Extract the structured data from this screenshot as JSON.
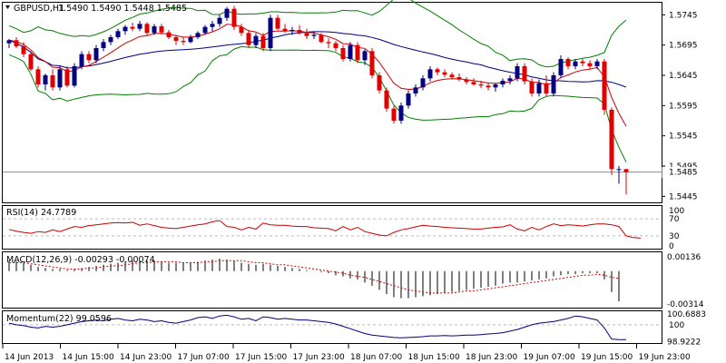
{
  "chart_data": {
    "type": "candlestick",
    "title": "GBPUSD,H1",
    "ohlc_header": "1.5490 1.5490 1.5448 1.5485",
    "last_price": 1.5485,
    "price_axis": {
      "range": [
        1.5435,
        1.5765
      ],
      "ticks": [
        "1.5745",
        "1.5695",
        "1.5645",
        "1.5595",
        "1.5545",
        "1.5495",
        "1.5445"
      ],
      "current_label": "1.5485"
    },
    "time_labels": [
      "14 Jun 2013",
      "14 Jun 15:00",
      "14 Jun 23:00",
      "17 Jun 07:00",
      "17 Jun 15:00",
      "17 Jun 23:00",
      "18 Jun 07:00",
      "18 Jun 15:00",
      "18 Jun 23:00",
      "19 Jun 07:00",
      "19 Jun 15:00",
      "19 Jun 23:00"
    ],
    "candles": [
      [
        1.5698,
        1.5705,
        1.569,
        1.5703
      ],
      [
        1.5703,
        1.5708,
        1.569,
        1.5693
      ],
      [
        1.5693,
        1.57,
        1.5675,
        1.568
      ],
      [
        1.568,
        1.5685,
        1.5652,
        1.5655
      ],
      [
        1.5655,
        1.566,
        1.5625,
        1.563
      ],
      [
        1.563,
        1.5648,
        1.562,
        1.5645
      ],
      [
        1.5645,
        1.5655,
        1.562,
        1.5625
      ],
      [
        1.5625,
        1.566,
        1.562,
        1.5655
      ],
      [
        1.5655,
        1.566,
        1.5625,
        1.5628
      ],
      [
        1.5628,
        1.5665,
        1.5625,
        1.566
      ],
      [
        1.566,
        1.5685,
        1.5655,
        1.568
      ],
      [
        1.568,
        1.5685,
        1.5665,
        1.567
      ],
      [
        1.567,
        1.5695,
        1.5665,
        1.569
      ],
      [
        1.569,
        1.5705,
        1.5685,
        1.57
      ],
      [
        1.57,
        1.5712,
        1.5695,
        1.5708
      ],
      [
        1.5708,
        1.5722,
        1.5705,
        1.5718
      ],
      [
        1.5718,
        1.5728,
        1.5712,
        1.5725
      ],
      [
        1.5725,
        1.5732,
        1.5718,
        1.5722
      ],
      [
        1.5722,
        1.5735,
        1.5718,
        1.573
      ],
      [
        1.573,
        1.5733,
        1.571,
        1.5715
      ],
      [
        1.5715,
        1.573,
        1.5712,
        1.5726
      ],
      [
        1.5726,
        1.573,
        1.5712,
        1.5716
      ],
      [
        1.5716,
        1.572,
        1.5705,
        1.5708
      ],
      [
        1.5708,
        1.5712,
        1.5695,
        1.5702
      ],
      [
        1.5702,
        1.5708,
        1.5695,
        1.57
      ],
      [
        1.57,
        1.5712,
        1.5698,
        1.5708
      ],
      [
        1.5708,
        1.5718,
        1.5705,
        1.5715
      ],
      [
        1.5715,
        1.5728,
        1.5712,
        1.5725
      ],
      [
        1.5725,
        1.5735,
        1.5718,
        1.573
      ],
      [
        1.573,
        1.5745,
        1.5725,
        1.574
      ],
      [
        1.574,
        1.5758,
        1.5735,
        1.5755
      ],
      [
        1.5755,
        1.576,
        1.572,
        1.5725
      ],
      [
        1.5725,
        1.573,
        1.571,
        1.5715
      ],
      [
        1.5715,
        1.572,
        1.569,
        1.5695
      ],
      [
        1.5695,
        1.5715,
        1.569,
        1.571
      ],
      [
        1.571,
        1.5715,
        1.5685,
        1.569
      ],
      [
        1.569,
        1.5745,
        1.5685,
        1.574
      ],
      [
        1.574,
        1.5745,
        1.572,
        1.5722
      ],
      [
        1.5722,
        1.573,
        1.5715,
        1.5718
      ],
      [
        1.5718,
        1.5725,
        1.5712,
        1.572
      ],
      [
        1.572,
        1.5728,
        1.5712,
        1.5715
      ],
      [
        1.5715,
        1.5722,
        1.5705,
        1.571
      ],
      [
        1.571,
        1.5718,
        1.5705,
        1.5712
      ],
      [
        1.5712,
        1.5715,
        1.5698,
        1.57
      ],
      [
        1.57,
        1.5706,
        1.569,
        1.5698
      ],
      [
        1.5698,
        1.5702,
        1.5685,
        1.569
      ],
      [
        1.569,
        1.5695,
        1.5668,
        1.5672
      ],
      [
        1.5672,
        1.57,
        1.5668,
        1.5695
      ],
      [
        1.5695,
        1.57,
        1.5665,
        1.567
      ],
      [
        1.567,
        1.5688,
        1.5662,
        1.5685
      ],
      [
        1.5685,
        1.569,
        1.564,
        1.5645
      ],
      [
        1.5645,
        1.565,
        1.5615,
        1.562
      ],
      [
        1.562,
        1.5625,
        1.5585,
        1.559
      ],
      [
        1.559,
        1.5595,
        1.5565,
        1.557
      ],
      [
        1.557,
        1.56,
        1.5565,
        1.5595
      ],
      [
        1.5595,
        1.562,
        1.559,
        1.5615
      ],
      [
        1.5615,
        1.563,
        1.561,
        1.5625
      ],
      [
        1.5625,
        1.5645,
        1.562,
        1.564
      ],
      [
        1.564,
        1.566,
        1.5635,
        1.5655
      ],
      [
        1.5655,
        1.5658,
        1.5645,
        1.565
      ],
      [
        1.565,
        1.5655,
        1.5642,
        1.5646
      ],
      [
        1.5646,
        1.565,
        1.5638,
        1.5642
      ],
      [
        1.5642,
        1.5648,
        1.5635,
        1.5638
      ],
      [
        1.5638,
        1.5642,
        1.563,
        1.5634
      ],
      [
        1.5634,
        1.564,
        1.5628,
        1.563
      ],
      [
        1.563,
        1.5636,
        1.5624,
        1.5628
      ],
      [
        1.5628,
        1.5632,
        1.562,
        1.5625
      ],
      [
        1.5625,
        1.5632,
        1.5618,
        1.563
      ],
      [
        1.563,
        1.564,
        1.5625,
        1.5636
      ],
      [
        1.5636,
        1.5645,
        1.563,
        1.564
      ],
      [
        1.564,
        1.5665,
        1.5635,
        1.566
      ],
      [
        1.566,
        1.5665,
        1.563,
        1.5635
      ],
      [
        1.5635,
        1.564,
        1.561,
        1.5615
      ],
      [
        1.5615,
        1.5638,
        1.561,
        1.5632
      ],
      [
        1.5632,
        1.5645,
        1.561,
        1.5615
      ],
      [
        1.5615,
        1.565,
        1.561,
        1.5645
      ],
      [
        1.5645,
        1.5678,
        1.564,
        1.5672
      ],
      [
        1.5672,
        1.5675,
        1.5655,
        1.566
      ],
      [
        1.566,
        1.5672,
        1.5655,
        1.5668
      ],
      [
        1.5668,
        1.5672,
        1.566,
        1.5665
      ],
      [
        1.5665,
        1.567,
        1.5655,
        1.566
      ],
      [
        1.566,
        1.5672,
        1.5655,
        1.5668
      ],
      [
        1.5668,
        1.5672,
        1.558,
        1.5588
      ],
      [
        1.5588,
        1.5592,
        1.548,
        1.549
      ],
      [
        1.549,
        1.5495,
        1.5466,
        1.549
      ],
      [
        1.549,
        1.549,
        1.5448,
        1.5485
      ]
    ],
    "indicators_on_price": [
      {
        "name": "Bollinger Bands",
        "color": "#008000"
      },
      {
        "name": "MA fast",
        "color": "#cc0000"
      },
      {
        "name": "MA slow",
        "color": "#000080"
      }
    ],
    "rsi": {
      "label": "RSI(14) 24.7789",
      "levels": [
        "100",
        "70",
        "30",
        "0"
      ],
      "values": [
        45,
        41,
        38,
        36,
        40,
        38,
        44,
        40,
        46,
        52,
        50,
        54,
        56,
        58,
        60,
        61,
        60,
        62,
        55,
        58,
        54,
        50,
        48,
        47,
        50,
        53,
        56,
        58,
        63,
        66,
        52,
        50,
        44,
        50,
        46,
        60,
        56,
        55,
        55,
        53,
        52,
        52,
        49,
        48,
        47,
        42,
        52,
        44,
        50,
        40,
        36,
        32,
        30,
        38,
        44,
        47,
        51,
        55,
        53,
        52,
        50,
        49,
        48,
        47,
        46,
        46,
        48,
        50,
        51,
        56,
        46,
        42,
        50,
        44,
        52,
        58,
        54,
        56,
        55,
        53,
        56,
        58,
        58,
        56,
        52,
        30,
        26,
        24.78
      ],
      "color": "#cc0000"
    },
    "macd": {
      "label": "MACD(12,26,9) -0.00293 -0.00074",
      "ticks": [
        "0.00136",
        "-0.00314"
      ],
      "histogram": [
        0.001,
        0.0009,
        0.0008,
        0.0006,
        0.0004,
        0.0003,
        0.0002,
        0.0002,
        0.0001,
        0.0002,
        0.0003,
        0.0004,
        0.0005,
        0.0006,
        0.0007,
        0.0008,
        0.0009,
        0.001,
        0.001,
        0.001,
        0.001,
        0.0009,
        0.0008,
        0.0008,
        0.0008,
        0.0008,
        0.0009,
        0.001,
        0.0011,
        0.0012,
        0.0011,
        0.001,
        0.0008,
        0.0007,
        0.0006,
        0.0007,
        0.0006,
        0.0005,
        0.0004,
        0.0003,
        0.0002,
        0.0001,
        0.0,
        -0.0001,
        -0.0002,
        -0.0004,
        -0.0005,
        -0.0007,
        -0.0008,
        -0.0011,
        -0.0014,
        -0.0018,
        -0.0022,
        -0.0025,
        -0.0026,
        -0.0026,
        -0.0025,
        -0.0024,
        -0.0023,
        -0.0022,
        -0.0021,
        -0.002,
        -0.0019,
        -0.0018,
        -0.0017,
        -0.0016,
        -0.0015,
        -0.0014,
        -0.0012,
        -0.0011,
        -0.0011,
        -0.001,
        -0.0009,
        -0.0008,
        -0.0007,
        -0.0005,
        -0.0004,
        -0.0003,
        -0.0003,
        -0.0002,
        -0.0002,
        -0.0002,
        -0.0008,
        -0.002,
        -0.0029
      ],
      "signal": [
        0.0008,
        0.0008,
        0.0008,
        0.0007,
        0.0006,
        0.0005,
        0.0004,
        0.0003,
        0.0002,
        0.0002,
        0.0002,
        0.0003,
        0.0003,
        0.0004,
        0.0005,
        0.0005,
        0.0006,
        0.0007,
        0.0008,
        0.0008,
        0.0009,
        0.0009,
        0.0009,
        0.0009,
        0.0008,
        0.0008,
        0.0008,
        0.0009,
        0.0009,
        0.001,
        0.001,
        0.001,
        0.001,
        0.0009,
        0.0008,
        0.0008,
        0.0007,
        0.0006,
        0.0006,
        0.0005,
        0.0004,
        0.0003,
        0.0002,
        0.0001,
        0.0,
        -0.0001,
        -0.0002,
        -0.0004,
        -0.0005,
        -0.0006,
        -0.0008,
        -0.001,
        -0.0012,
        -0.0014,
        -0.0016,
        -0.0018,
        -0.0019,
        -0.002,
        -0.0021,
        -0.0021,
        -0.0021,
        -0.0021,
        -0.002,
        -0.0019,
        -0.0019,
        -0.0018,
        -0.0017,
        -0.0016,
        -0.0015,
        -0.0014,
        -0.0013,
        -0.0012,
        -0.0011,
        -0.001,
        -0.0009,
        -0.0008,
        -0.0007,
        -0.0006,
        -0.0005,
        -0.0004,
        -0.0004,
        -0.0003,
        -0.0004,
        -0.0006,
        -0.0007
      ],
      "color": "#000000",
      "signal_color": "#cc0000"
    },
    "momentum": {
      "label": "Momentum(22) 99.0596",
      "ticks": [
        "100.6883",
        "98.9222"
      ],
      "reference": 100,
      "values": [
        100.1,
        100.0,
        99.95,
        99.85,
        99.8,
        99.9,
        99.85,
        99.9,
        100.0,
        100.1,
        100.2,
        100.25,
        100.3,
        100.25,
        100.35,
        100.4,
        100.3,
        100.25,
        100.35,
        100.3,
        100.2,
        100.25,
        100.15,
        100.1,
        100.2,
        100.3,
        100.45,
        100.5,
        100.4,
        100.55,
        100.6,
        100.5,
        100.35,
        100.4,
        100.25,
        100.5,
        100.45,
        100.35,
        100.4,
        100.35,
        100.3,
        100.3,
        100.25,
        100.2,
        100.15,
        100.05,
        99.9,
        99.75,
        99.6,
        99.45,
        99.35,
        99.3,
        99.25,
        99.2,
        99.18,
        99.2,
        99.22,
        99.25,
        99.3,
        99.3,
        99.32,
        99.3,
        99.32,
        99.35,
        99.35,
        99.38,
        99.42,
        99.45,
        99.5,
        99.6,
        99.7,
        99.85,
        100.0,
        100.1,
        100.15,
        100.2,
        100.3,
        100.4,
        100.55,
        100.5,
        100.4,
        100.3,
        99.8,
        99.1,
        99.06,
        99.06
      ],
      "color": "#000080"
    }
  }
}
